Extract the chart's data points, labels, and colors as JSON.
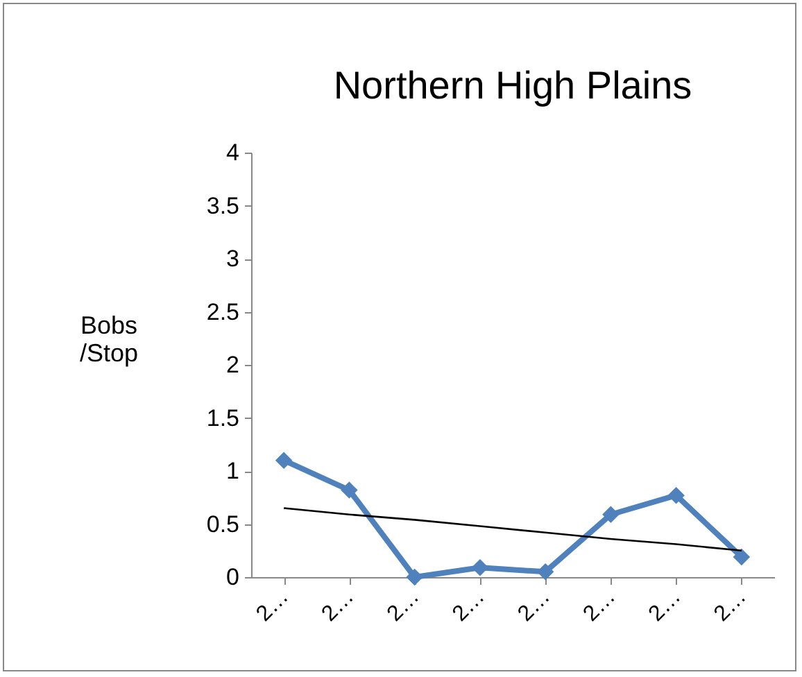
{
  "chart_data": {
    "type": "line",
    "title": "Northern High Plains",
    "ylabel": "Bobs /Stop",
    "categories": [
      "2…",
      "2…",
      "2…",
      "2…",
      "2…",
      "2…",
      "2…",
      "2…"
    ],
    "series": [
      {
        "color": "#4f81bd",
        "values": [
          1.1,
          0.82,
          0,
          0.09,
          0.05,
          0.59,
          0.77,
          0.19
        ],
        "marker": "diamond"
      },
      {
        "type": "line",
        "color": "#000000",
        "values": [
          0.65,
          0.59,
          0.54,
          0.48,
          0.42,
          0.36,
          0.31,
          0.25
        ],
        "marker": "none"
      }
    ],
    "ylim": [
      0,
      4
    ],
    "yticks": [
      0,
      0.5,
      1,
      1.5,
      2,
      2.5,
      3,
      3.5,
      4
    ]
  }
}
